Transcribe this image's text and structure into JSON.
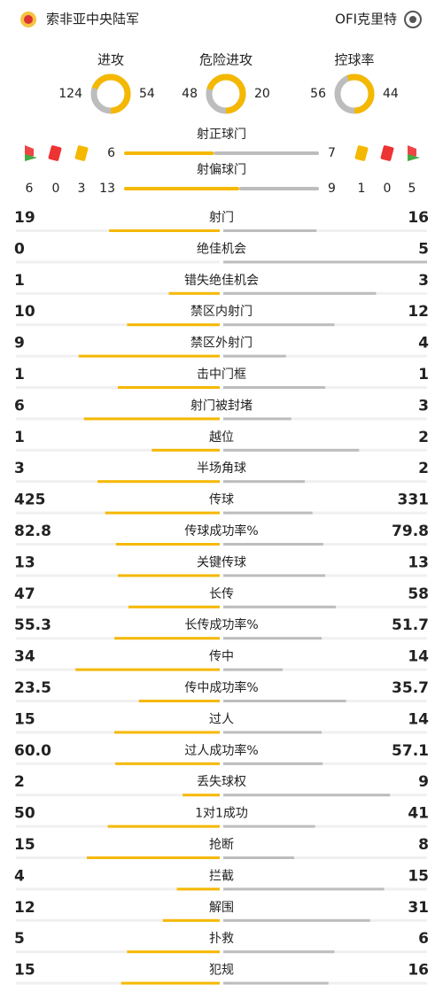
{
  "header": {
    "home": "索非亚中央陆军",
    "away": "OFI克里特"
  },
  "donuts": [
    {
      "label": "进攻",
      "home": 124,
      "away": 54
    },
    {
      "label": "危险进攻",
      "home": 48,
      "away": 20
    },
    {
      "label": "控球率",
      "home": 56,
      "away": 44
    }
  ],
  "shots": {
    "on_target": {
      "label": "射正球门",
      "home": 6,
      "away": 7
    },
    "off_target": {
      "label": "射偏球门",
      "home": 13,
      "away": 9
    },
    "home_cards": {
      "corners": 6,
      "red": 0,
      "yellow": 3
    },
    "away_cards": {
      "yellow": 1,
      "red": 0,
      "corners": 5
    }
  },
  "stats": [
    {
      "label": "射门",
      "home": 19,
      "away": 16
    },
    {
      "label": "绝佳机会",
      "home": 0,
      "away": 5
    },
    {
      "label": "错失绝佳机会",
      "home": 1,
      "away": 3
    },
    {
      "label": "禁区内射门",
      "home": 10,
      "away": 12
    },
    {
      "label": "禁区外射门",
      "home": 9,
      "away": 4
    },
    {
      "label": "击中门框",
      "home": 1,
      "away": 1
    },
    {
      "label": "射门被封堵",
      "home": 6,
      "away": 3
    },
    {
      "label": "越位",
      "home": 1,
      "away": 2
    },
    {
      "label": "半场角球",
      "home": 3,
      "away": 2
    },
    {
      "label": "传球",
      "home": 425,
      "away": 331
    },
    {
      "label": "传球成功率%",
      "home": 82.8,
      "away": 79.8
    },
    {
      "label": "关键传球",
      "home": 13,
      "away": 13
    },
    {
      "label": "长传",
      "home": 47,
      "away": 58
    },
    {
      "label": "长传成功率%",
      "home": 55.3,
      "away": 51.7
    },
    {
      "label": "传中",
      "home": 34,
      "away": 14
    },
    {
      "label": "传中成功率%",
      "home": 23.5,
      "away": 35.7
    },
    {
      "label": "过人",
      "home": 15,
      "away": 14
    },
    {
      "label": "过人成功率%",
      "home": {
        "value": 60,
        "label": "60.0"
      },
      "away": 57.1
    },
    {
      "label": "丢失球权",
      "home": 2,
      "away": 9
    },
    {
      "label": "1对1成功",
      "home": 50,
      "away": 41
    },
    {
      "label": "抢断",
      "home": 15,
      "away": 8
    },
    {
      "label": "拦截",
      "home": 4,
      "away": 15
    },
    {
      "label": "解围",
      "home": 12,
      "away": 31
    },
    {
      "label": "扑救",
      "home": 5,
      "away": 6
    },
    {
      "label": "犯规",
      "home": 15,
      "away": 16
    }
  ]
}
